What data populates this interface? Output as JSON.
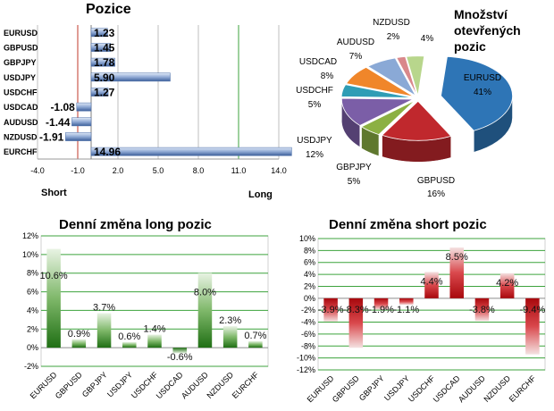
{
  "colors": {
    "positive_bar": "#3f8f2a",
    "negative_bar": "#c8191e",
    "position_bar": "#6f8fc4",
    "grid_green": "#3ca33c",
    "grid_red": "#c0392b",
    "grid_gray": "#bfbfbf"
  },
  "chart_data": [
    {
      "type": "bar",
      "orientation": "horizontal",
      "title": "Pozice",
      "categories": [
        "EURUSD",
        "GBPUSD",
        "GBPJPY",
        "USDJPY",
        "USDCHF",
        "USDCAD",
        "AUDUSD",
        "NZDUSD",
        "EURCHF"
      ],
      "values": [
        1.23,
        1.45,
        1.78,
        5.9,
        1.27,
        -1.08,
        -1.44,
        -1.91,
        14.96
      ],
      "value_labels": [
        "1.23",
        "1.45",
        "1.78",
        "5.90",
        "1.27",
        "-1.08",
        "-1.44",
        "-1.91",
        "14.96"
      ],
      "xlim": [
        -4.0,
        14.0
      ],
      "xticks": [
        "-4.0",
        "-1.0",
        "2.0",
        "5.0",
        "8.0",
        "11.0",
        "14.0"
      ],
      "side_labels": {
        "left": "Short",
        "right": "Long"
      }
    },
    {
      "type": "pie",
      "title_lines": [
        "Množství",
        "otevřených",
        "pozic"
      ],
      "slices": [
        {
          "name": "EURUSD",
          "value": 41,
          "label": "41%",
          "color": "#2e75b6"
        },
        {
          "name": "GBPUSD",
          "value": 16,
          "label": "16%",
          "color": "#c0282d"
        },
        {
          "name": "GBPJPY",
          "value": 5,
          "label": "5%",
          "color": "#8cb043"
        },
        {
          "name": "USDJPY",
          "value": 12,
          "label": "12%",
          "color": "#7b5ea7"
        },
        {
          "name": "USDCHF",
          "value": 5,
          "label": "5%",
          "color": "#2f9db5"
        },
        {
          "name": "USDCAD",
          "value": 8,
          "label": "8%",
          "color": "#f0862a"
        },
        {
          "name": "AUDUSD",
          "value": 7,
          "label": "7%",
          "color": "#8aa9d6"
        },
        {
          "name": "NZDUSD",
          "value": 2,
          "label": "2%",
          "color": "#d9888b"
        },
        {
          "name": "",
          "value": 4,
          "label": "4%",
          "color": "#b8d68c"
        }
      ]
    },
    {
      "type": "bar",
      "title": "Denní změna long pozic",
      "categories": [
        "EURUSD",
        "GBPUSD",
        "GBPJPY",
        "USDJPY",
        "USDCHF",
        "USDCAD",
        "AUDUSD",
        "NZDUSD",
        "EURCHF"
      ],
      "values": [
        10.6,
        0.9,
        3.7,
        0.6,
        1.4,
        -0.6,
        8.0,
        2.3,
        0.7
      ],
      "value_labels": [
        "10.6%",
        "0.9%",
        "3.7%",
        "0.6%",
        "1.4%",
        "-0.6%",
        "8.0%",
        "2.3%",
        "0.7%"
      ],
      "ylim": [
        -2,
        12
      ],
      "yticks": [
        "-2%",
        "0%",
        "2%",
        "4%",
        "6%",
        "8%",
        "10%",
        "12%"
      ]
    },
    {
      "type": "bar",
      "title": "Denní změna short pozic",
      "categories": [
        "EURUSD",
        "GBPUSD",
        "GBPJPY",
        "USDJPY",
        "USDCHF",
        "USDCAD",
        "AUDUSD",
        "NZDUSD",
        "EURCHF"
      ],
      "values": [
        -3.9,
        -8.3,
        -1.9,
        -1.1,
        4.4,
        8.5,
        -3.8,
        4.2,
        -9.4
      ],
      "value_labels": [
        "-3.9%",
        "-8.3%",
        "-1.9%",
        "-1.1%",
        "4.4%",
        "8.5%",
        "-3.8%",
        "4.2%",
        "-9.4%"
      ],
      "ylim": [
        -12,
        10
      ],
      "yticks": [
        "-12%",
        "-10%",
        "-8%",
        "-6%",
        "-4%",
        "-2%",
        "0%",
        "2%",
        "4%",
        "6%",
        "8%",
        "10%"
      ]
    }
  ]
}
